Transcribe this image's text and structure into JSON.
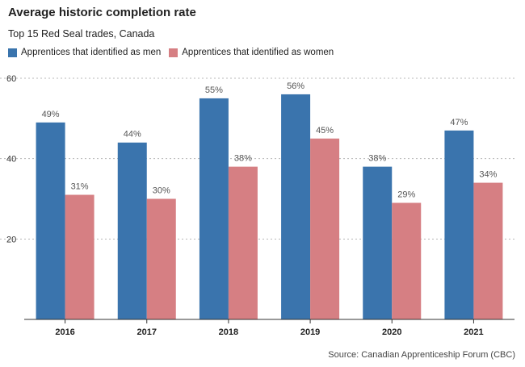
{
  "chart_data": {
    "type": "bar",
    "title": "Average historic completion rate",
    "subtitle": "Top 15 Red Seal trades, Canada",
    "categories": [
      "2016",
      "2017",
      "2018",
      "2019",
      "2020",
      "2021"
    ],
    "series": [
      {
        "name": "Apprentices that identified as men",
        "color": "#3a74ad",
        "values": [
          49,
          44,
          55,
          56,
          38,
          47
        ],
        "labels": [
          "49%",
          "44%",
          "55%",
          "56%",
          "38%",
          "47%"
        ]
      },
      {
        "name": "Apprentices that identified as women",
        "color": "#d67f83",
        "values": [
          31,
          30,
          38,
          45,
          29,
          34
        ],
        "labels": [
          "31%",
          "30%",
          "38%",
          "45%",
          "29%",
          "34%"
        ]
      }
    ],
    "yticks": [
      "20",
      "40",
      "60"
    ],
    "ylim": [
      0,
      60
    ],
    "xlabel": "",
    "ylabel": "",
    "grid": true,
    "legend": "top-left",
    "source": "Source: Canadian Apprenticeship Forum (CBC)"
  }
}
